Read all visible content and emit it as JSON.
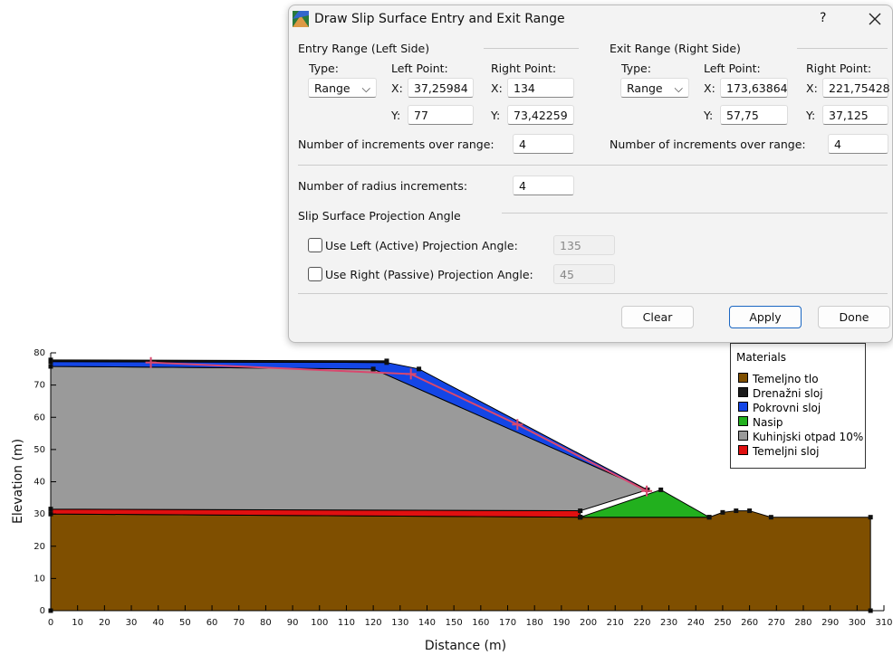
{
  "dialog": {
    "title": "Draw Slip Surface Entry and Exit Range",
    "help": "?",
    "entry": {
      "heading": "Entry Range (Left Side)",
      "type_label": "Type:",
      "type": "Range",
      "left_label": "Left Point:",
      "right_label": "Right Point:",
      "x_label": "X:",
      "y_label": "Y:",
      "left": {
        "x": "37,25984",
        "y": "77"
      },
      "right": {
        "x": "134",
        "y": "73,42259"
      },
      "increments_label": "Number of increments over range:",
      "increments": "4"
    },
    "exit": {
      "heading": "Exit Range (Right Side)",
      "type_label": "Type:",
      "type": "Range",
      "left_label": "Left Point:",
      "right_label": "Right Point:",
      "x_label": "X:",
      "y_label": "Y:",
      "left": {
        "x": "173,63864",
        "y": "57,75"
      },
      "right": {
        "x": "221,75428",
        "y": "37,125"
      },
      "increments_label": "Number of increments over range:",
      "increments": "4"
    },
    "radius_label": "Number of radius increments:",
    "radius": "4",
    "projection_heading": "Slip Surface Projection Angle",
    "left_proj_label": "Use Left (Active) Projection Angle:",
    "left_proj": "135",
    "right_proj_label": "Use Right (Passive) Projection Angle:",
    "right_proj": "45",
    "buttons": [
      "Clear",
      "Apply",
      "Done"
    ]
  },
  "chart_data": {
    "type": "section",
    "xlabel": "Distance (m)",
    "ylabel": "Elevation (m)",
    "xlim": [
      0,
      310
    ],
    "ylim": [
      0,
      80
    ],
    "xticks": [
      0,
      10,
      20,
      30,
      40,
      50,
      60,
      70,
      80,
      90,
      100,
      110,
      120,
      130,
      140,
      150,
      160,
      170,
      180,
      190,
      200,
      210,
      220,
      230,
      240,
      250,
      260,
      270,
      280,
      290,
      300,
      310
    ],
    "yticks": [
      0,
      10,
      20,
      30,
      40,
      50,
      60,
      70,
      80
    ],
    "legend_title": "Materials",
    "materials": [
      {
        "name": "Temeljno tlo",
        "color": "#7f4f00"
      },
      {
        "name": "Drenažni sloj",
        "color": "#1a1a1a"
      },
      {
        "name": "Pokrovni sloj",
        "color": "#1446e6"
      },
      {
        "name": "Nasip",
        "color": "#22b01e"
      },
      {
        "name": "Kuhinjski otpad 10%",
        "color": "#9a9a9a"
      },
      {
        "name": "Temeljni sloj",
        "color": "#e01010"
      }
    ],
    "regions": [
      {
        "material": 0,
        "x": [
          0,
          0,
          197,
          245,
          250,
          255,
          260,
          268,
          305,
          305
        ],
        "y": [
          0,
          30,
          29,
          29,
          30.5,
          31,
          31,
          29,
          29,
          0
        ]
      },
      {
        "material": 5,
        "x": [
          0,
          197,
          197,
          0
        ],
        "y": [
          30,
          29,
          31,
          31.5
        ]
      },
      {
        "material": 4,
        "x": [
          0,
          0,
          120,
          222,
          197,
          0
        ],
        "y": [
          31.5,
          75.8,
          75,
          37.5,
          31,
          31.5
        ]
      },
      {
        "material": 3,
        "x": [
          197,
          227,
          245
        ],
        "y": [
          29,
          37.5,
          29
        ]
      },
      {
        "material": 2,
        "x": [
          0,
          0,
          125,
          137,
          222,
          120
        ],
        "y": [
          75.8,
          77.3,
          77,
          75,
          37.5,
          75
        ]
      },
      {
        "material": 1,
        "x": [
          0,
          125,
          125,
          0
        ],
        "y": [
          77.3,
          77,
          77.5,
          77.8
        ]
      }
    ]
  }
}
